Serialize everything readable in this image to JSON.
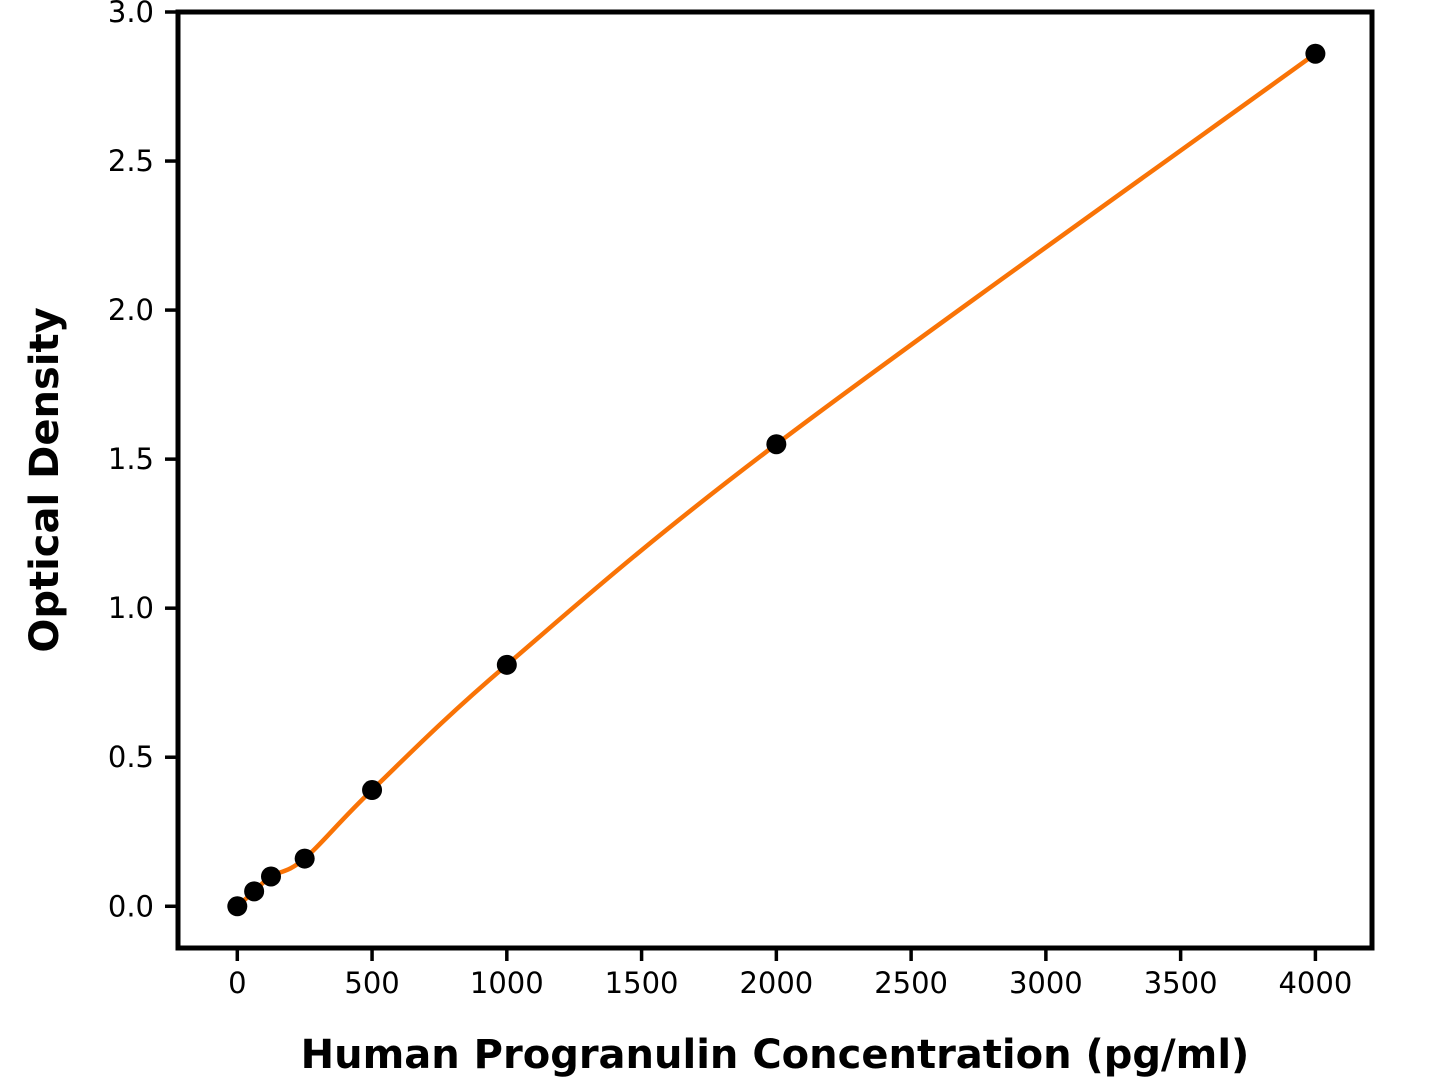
{
  "chart_data": {
    "type": "line",
    "title": "",
    "xlabel": "Human Progranulin Concentration (pg/ml)",
    "ylabel": "Optical Density",
    "x": [
      0,
      62.5,
      125,
      250,
      500,
      1000,
      2000,
      4000
    ],
    "series": [
      {
        "name": "fitted-standard-curve",
        "style": "smooth-line",
        "color": "#F97306",
        "line_width": 4.5,
        "values": [
          0.0,
          0.05,
          0.1,
          0.16,
          0.39,
          0.81,
          1.55,
          2.86
        ]
      },
      {
        "name": "standard-points",
        "style": "scatter-filled-circle",
        "color": "#000000",
        "marker_radius": 10,
        "values": [
          0.0,
          0.05,
          0.1,
          0.16,
          0.39,
          0.81,
          1.55,
          2.86
        ]
      }
    ],
    "xticks": [
      0,
      500,
      1000,
      1500,
      2000,
      2500,
      3000,
      3500,
      4000
    ],
    "yticks": [
      0.0,
      0.5,
      1.0,
      1.5,
      2.0,
      2.5,
      3.0
    ],
    "xlim": [
      -220,
      4210
    ],
    "ylim": [
      -0.14,
      3.0
    ],
    "grid": false,
    "legend": "none",
    "axis_color": "#000000",
    "background": "#FFFFFF"
  }
}
